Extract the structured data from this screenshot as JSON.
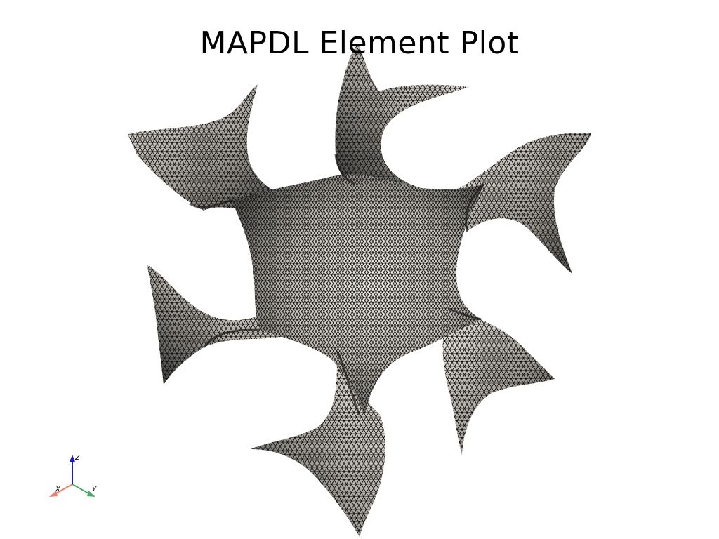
{
  "plot": {
    "title": "MAPDL Element Plot"
  },
  "axes_triad": {
    "x_label": "X",
    "y_label": "Y",
    "z_label": "Z",
    "x_color": "#e8836d",
    "y_color": "#4fa96b",
    "z_color": "#1a1ac8"
  },
  "mesh": {
    "surface_color": "#e6e1d8",
    "edge_color": "#111111",
    "background_color": "#ffffff"
  }
}
